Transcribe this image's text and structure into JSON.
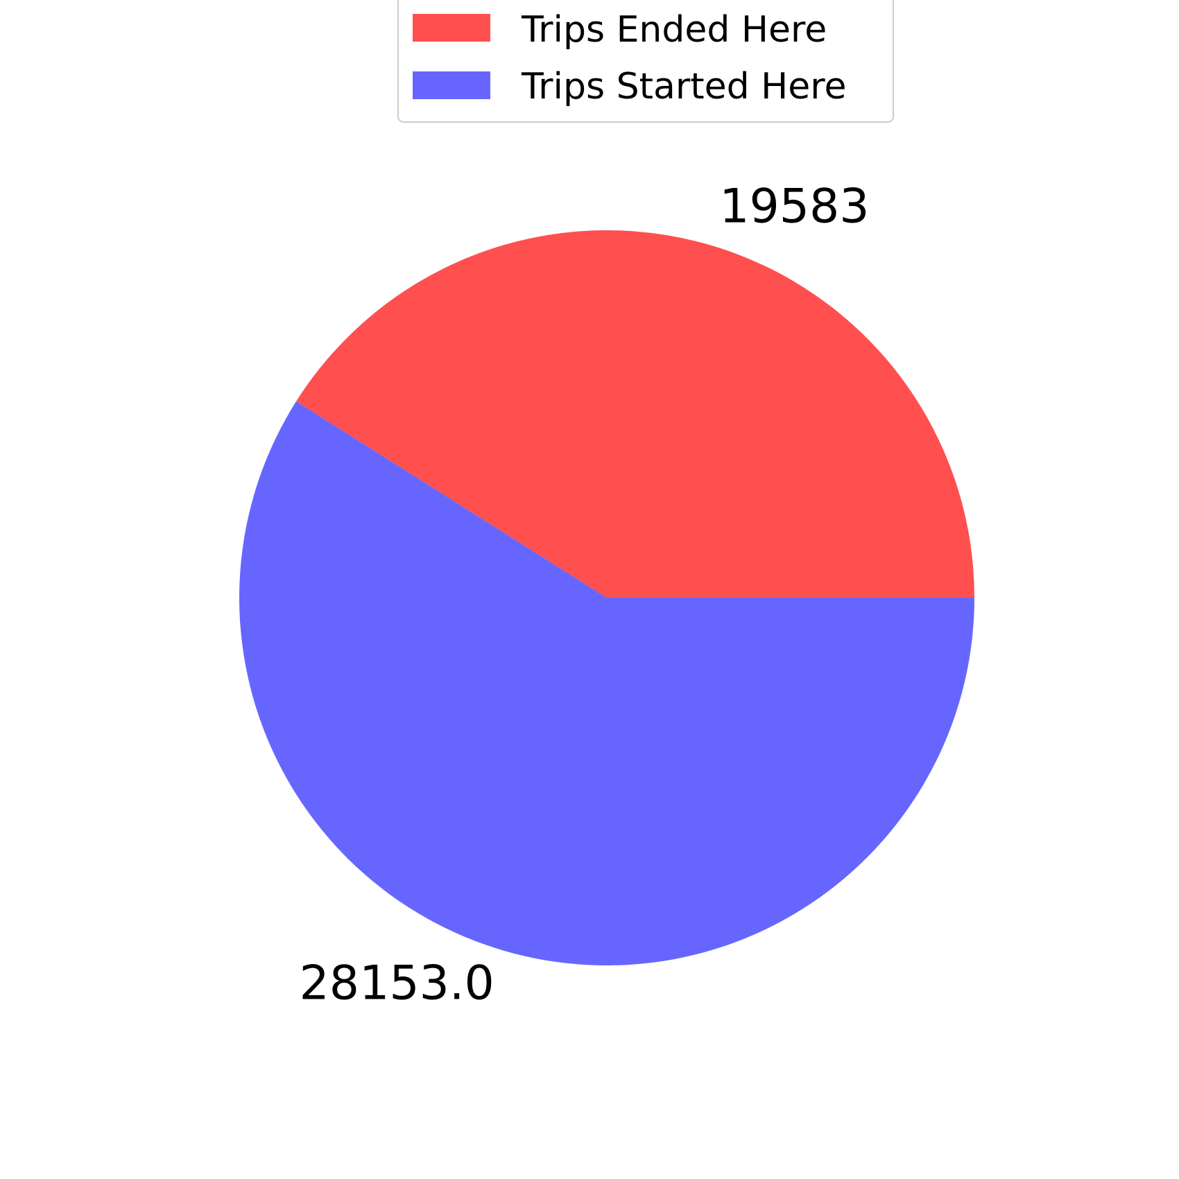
{
  "chart_data": {
    "type": "pie",
    "title": "",
    "startangle_deg": 0,
    "direction": "counterclockwise",
    "slices": [
      {
        "name": "Trips Ended Here",
        "value": 19583,
        "label": "19583",
        "color": "#ff4f4f"
      },
      {
        "name": "Trips Started Here",
        "value": 28153.0,
        "label": "28153.0",
        "color": "#6666ff"
      }
    ],
    "legend": {
      "placement": "top-center",
      "entries": [
        "Trips Ended Here",
        "Trips Started Here"
      ]
    }
  }
}
